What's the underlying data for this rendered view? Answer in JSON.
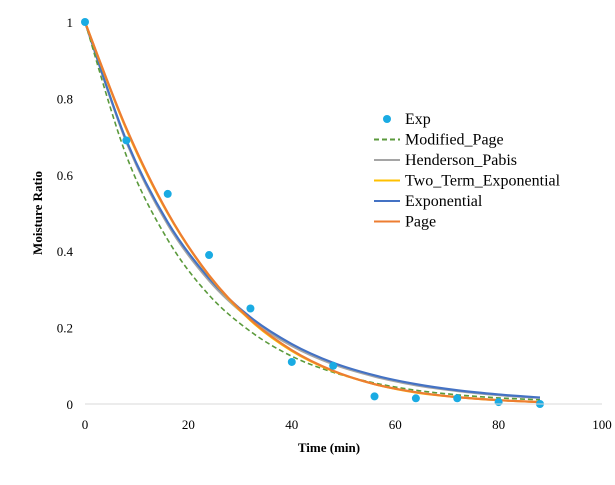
{
  "chart_data": {
    "type": "line",
    "xlabel": "Time (min)",
    "ylabel": "Moisture Ratio",
    "xlim": [
      0,
      100
    ],
    "ylim": [
      0,
      1
    ],
    "x_ticks": [
      "0",
      "20",
      "40",
      "60",
      "80",
      "100"
    ],
    "y_ticks": [
      "0",
      "0.2",
      "0.4",
      "0.6",
      "0.8",
      "1"
    ],
    "grid": false,
    "legend_position": "right",
    "x": [
      0,
      8,
      16,
      24,
      32,
      40,
      48,
      56,
      64,
      72,
      80,
      88
    ],
    "series": [
      {
        "name": "Exp",
        "style": "markers",
        "color": "#1aabe3",
        "values": [
          1.0,
          0.69,
          0.55,
          0.39,
          0.25,
          0.11,
          0.1,
          0.02,
          0.015,
          0.015,
          0.005,
          0.0
        ]
      },
      {
        "name": "Modified_Page",
        "style": "dashed",
        "color": "#5b9a3c",
        "values": [
          1.0,
          0.65,
          0.43,
          0.285,
          0.19,
          0.125,
          0.083,
          0.055,
          0.036,
          0.024,
          0.016,
          0.011
        ]
      },
      {
        "name": "Henderson_Pabis",
        "style": "solid",
        "color": "#a5a5a5",
        "values": [
          1.0,
          0.686,
          0.47,
          0.323,
          0.222,
          0.152,
          0.104,
          0.072,
          0.049,
          0.034,
          0.023,
          0.016
        ]
      },
      {
        "name": "Two_Term_Exponential",
        "style": "solid",
        "color": "#ffc000",
        "values": [
          1.0,
          0.719,
          0.499,
          0.336,
          0.219,
          0.139,
          0.086,
          0.052,
          0.03,
          0.018,
          0.01,
          0.005
        ]
      },
      {
        "name": "Exponential",
        "style": "solid",
        "color": "#4472c4",
        "values": [
          1.0,
          0.69,
          0.476,
          0.329,
          0.227,
          0.157,
          0.108,
          0.075,
          0.052,
          0.036,
          0.025,
          0.017
        ]
      },
      {
        "name": "Page",
        "style": "solid",
        "color": "#ed7d31",
        "values": [
          1.0,
          0.722,
          0.501,
          0.337,
          0.221,
          0.141,
          0.087,
          0.052,
          0.031,
          0.018,
          0.01,
          0.005
        ]
      }
    ]
  }
}
